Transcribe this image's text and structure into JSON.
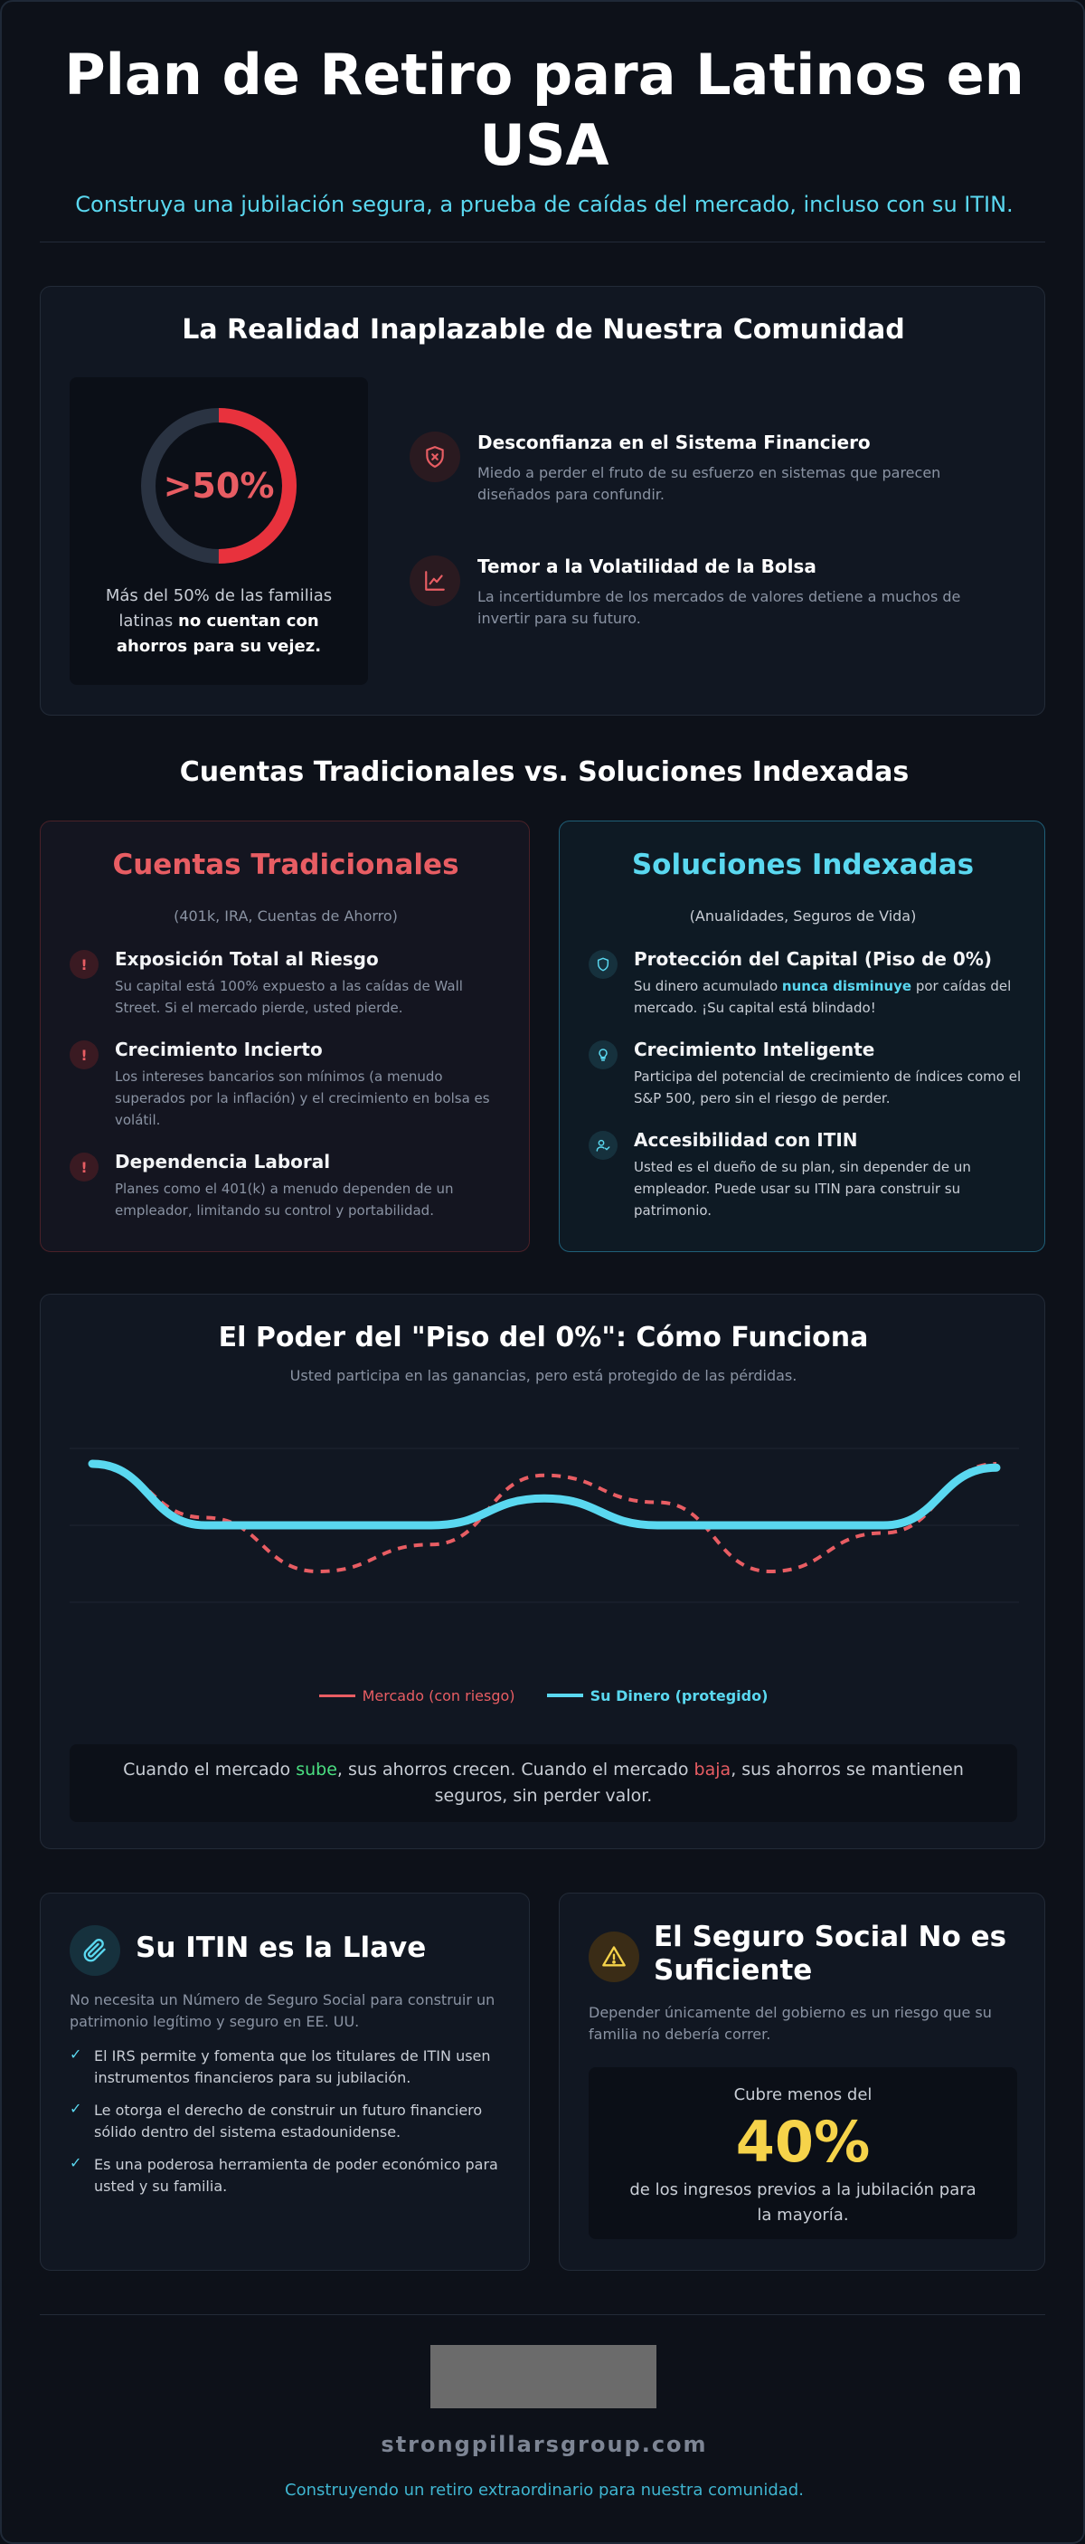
{
  "header": {
    "title": "Plan de Retiro para Latinos en USA",
    "subtitle": "Construya una jubilación segura, a prueba de caídas del mercado, incluso con su ITIN."
  },
  "reality": {
    "title": "La Realidad Inaplazable de Nuestra Comunidad",
    "stat": ">50%",
    "stat_fraction": 0.5,
    "stat_text_lead": "Más del 50% de las familias latinas ",
    "stat_text_bold": "no cuentan con ahorros para su vejez.",
    "items": [
      {
        "icon": "shield-x-icon",
        "title": "Desconfianza en el Sistema Financiero",
        "desc": "Miedo a perder el fruto de su esfuerzo en sistemas que parecen diseñados para confundir."
      },
      {
        "icon": "chart-line-icon",
        "title": "Temor a la Volatilidad de la Bolsa",
        "desc": "La incertidumbre de los mercados de valores detiene a muchos de invertir para su futuro."
      }
    ]
  },
  "comparison": {
    "title": "Cuentas Tradicionales vs. Soluciones Indexadas",
    "traditional": {
      "title": "Cuentas Tradicionales",
      "subtitle": "(401k, IRA, Cuentas de Ahorro)",
      "items": [
        {
          "title": "Exposición Total al Riesgo",
          "desc": "Su capital está 100% expuesto a las caídas de Wall Street. Si el mercado pierde, usted pierde."
        },
        {
          "title": "Crecimiento Incierto",
          "desc": "Los intereses bancarios son mínimos (a menudo superados por la inflación) y el crecimiento en bolsa es volátil."
        },
        {
          "title": "Dependencia Laboral",
          "desc": "Planes como el 401(k) a menudo dependen de un empleador, limitando su control y portabilidad."
        }
      ]
    },
    "indexed": {
      "title": "Soluciones Indexadas",
      "subtitle": "(Anualidades, Seguros de Vida)",
      "items": [
        {
          "title": "Protección del Capital (Piso de 0%)",
          "desc_a": "Su dinero acumulado ",
          "desc_hl": "nunca disminuye",
          "desc_b": " por caídas del mercado. ¡Su capital está blindado!"
        },
        {
          "title": "Crecimiento Inteligente",
          "desc": "Participa del potencial de crecimiento de índices como el S&P 500, pero sin el riesgo de perder."
        },
        {
          "title": "Accesibilidad con ITIN",
          "desc": "Usted es el dueño de su plan, sin depender de un empleador. Puede usar su ITIN para construir su patrimonio."
        }
      ]
    }
  },
  "floor": {
    "title": "El Poder del \"Piso del 0%\": Cómo Funciona",
    "subtitle": "Usted participa en las ganancias, pero está protegido de las pérdidas.",
    "legend_market": "Mercado (con riesgo)",
    "legend_money": "Su Dinero (protegido)",
    "note_a": "Cuando el mercado ",
    "note_up": "sube",
    "note_b": ", sus ahorros crecen. Cuando el mercado ",
    "note_down": "baja",
    "note_c": ", sus ahorros se mantienen seguros, sin perder valor."
  },
  "chart_data": {
    "type": "line",
    "title": "",
    "xlabel": "",
    "ylabel": "",
    "grid": true,
    "series": [
      {
        "name": "Mercado (con riesgo)",
        "color": "#e85d63",
        "style": "dashed",
        "values": [
          0.8,
          0.1,
          -0.6,
          -0.25,
          0.65,
          0.3,
          -0.6,
          -0.1,
          0.8
        ]
      },
      {
        "name": "Su Dinero (protegido)",
        "color": "#5ad8f0",
        "style": "solid",
        "values": [
          0.8,
          0.0,
          0.0,
          0.0,
          0.35,
          0.0,
          0.0,
          0.0,
          0.75
        ]
      }
    ],
    "ylim": [
      -1,
      1
    ]
  },
  "itin": {
    "title": "Su ITIN es la Llave",
    "intro": "No necesita un Número de Seguro Social para construir un patrimonio legítimo y seguro en EE. UU.",
    "checks": [
      "El IRS permite y fomenta que los titulares de ITIN usen instrumentos financieros para su jubilación.",
      "Le otorga el derecho de construir un futuro financiero sólido dentro del sistema estadounidense.",
      "Es una poderosa herramienta de poder económico para usted y su familia."
    ]
  },
  "social": {
    "title": "El Seguro Social No es Suficiente",
    "intro": "Depender únicamente del gobierno es un riesgo que su familia no debería correr.",
    "box_top": "Cubre menos del",
    "box_value": "40%",
    "box_bottom": "de los ingresos previos a la jubilación para la mayoría."
  },
  "footer": {
    "domain": "strongpillarsgroup.com",
    "tagline": "Construyendo un retiro extraordinario para nuestra comunidad."
  },
  "colors": {
    "accent": "#5ad8f0",
    "danger": "#e85d63",
    "gold": "#f6d34a",
    "green": "#4ade80"
  }
}
